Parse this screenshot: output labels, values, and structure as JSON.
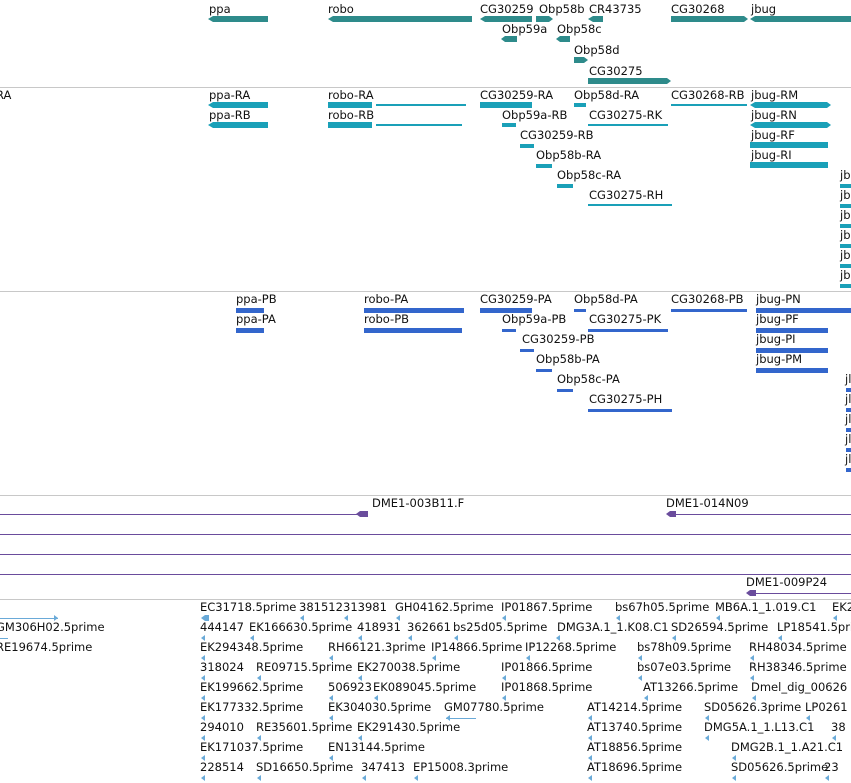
{
  "colors": {
    "gene": "#2e8b8b",
    "transcript": "#1aa0b8",
    "protein": "#3366cc",
    "clone": "#6a4c9c",
    "est": "#6aaad8",
    "separator": "#c8c8c8"
  },
  "gene_track": {
    "labels": [
      "ppa",
      "robo",
      "CG30259",
      "Obp58b",
      "CR43735",
      "CG30268",
      "jbug",
      "Obp59a",
      "Obp58c",
      "Obp58d",
      "CG30275"
    ]
  },
  "transcript_track": {
    "labels": [
      "RA",
      "ppa-RA",
      "ppa-RB",
      "robo-RA",
      "robo-RB",
      "CG30259-RA",
      "Obp58d-RA",
      "CG30268-RB",
      "jbug-RM",
      "Obp59a-RB",
      "CG30275-RK",
      "jbug-RN",
      "CG30259-RB",
      "jbug-RF",
      "Obp58b-RA",
      "jbug-RI",
      "Obp58c-RA",
      "CG30275-RH",
      "jb",
      "jb",
      "jb",
      "jb",
      "jb",
      "jb"
    ]
  },
  "protein_track": {
    "labels": [
      "ppa-PB",
      "ppa-PA",
      "robo-PA",
      "robo-PB",
      "CG30259-PA",
      "Obp58d-PA",
      "CG30268-PB",
      "jbug-PN",
      "Obp59a-PB",
      "CG30275-PK",
      "jbug-PF",
      "CG30259-PB",
      "jbug-PI",
      "Obp58b-PA",
      "jbug-PM",
      "Obp58c-PA",
      "CG30275-PH",
      "jl",
      "jl",
      "jl",
      "jl",
      "jl"
    ]
  },
  "clone_track": {
    "labels": [
      "DME1-003B11.F",
      "DME1-014N09",
      "DME1-009P24"
    ]
  },
  "est_track": {
    "labels": [
      "EC31718.5prime",
      "381512",
      "313981",
      "GH04162.5prime",
      "IP01867.5prime",
      "bs67h05.5prime",
      "MB6A.1_1.019.C1",
      "EK2",
      "444147",
      "EK166630.5prime",
      "418931",
      "362661",
      "bs25d05.5prime",
      "DMG3A.1_1.K08.C1",
      "SD26594.5prime",
      "LP18541.5prime",
      "GM306H02.5prime",
      "EK294348.5prime",
      "RH66121.3prime",
      "IP14866.5prime",
      "IP12268.5prime",
      "bs78h09.5prime",
      "RH48034.5prime",
      "RE19674.5prime",
      "318024",
      "RE09715.5prime",
      "EK270038.5prime",
      "IP01866.5prime",
      "bs07e03.5prime",
      "RH38346.5prime",
      "EK199662.5prime",
      "506923",
      "EK089045.5prime",
      "IP01868.5prime",
      "AT13266.5prime",
      "Dmel_dig_00626",
      "EK177332.5prime",
      "EK304030.5prime",
      "GM07780.5prime",
      "AT14214.5prime",
      "SD05626.3prime",
      "LP0261",
      "294010",
      "RE35601.5prime",
      "EK291430.5prime",
      "AT13740.5prime",
      "DMG5A.1_1.L13.C1",
      "38",
      "EK171037.5prime",
      "EN13144.5prime",
      "AT18856.5prime",
      "DMG2B.1_1.A21.C1",
      "228514",
      "SD16650.5prime",
      "347413",
      "EP15008.3prime",
      "AT18696.5prime",
      "SD05626.5prime",
      "23"
    ]
  }
}
